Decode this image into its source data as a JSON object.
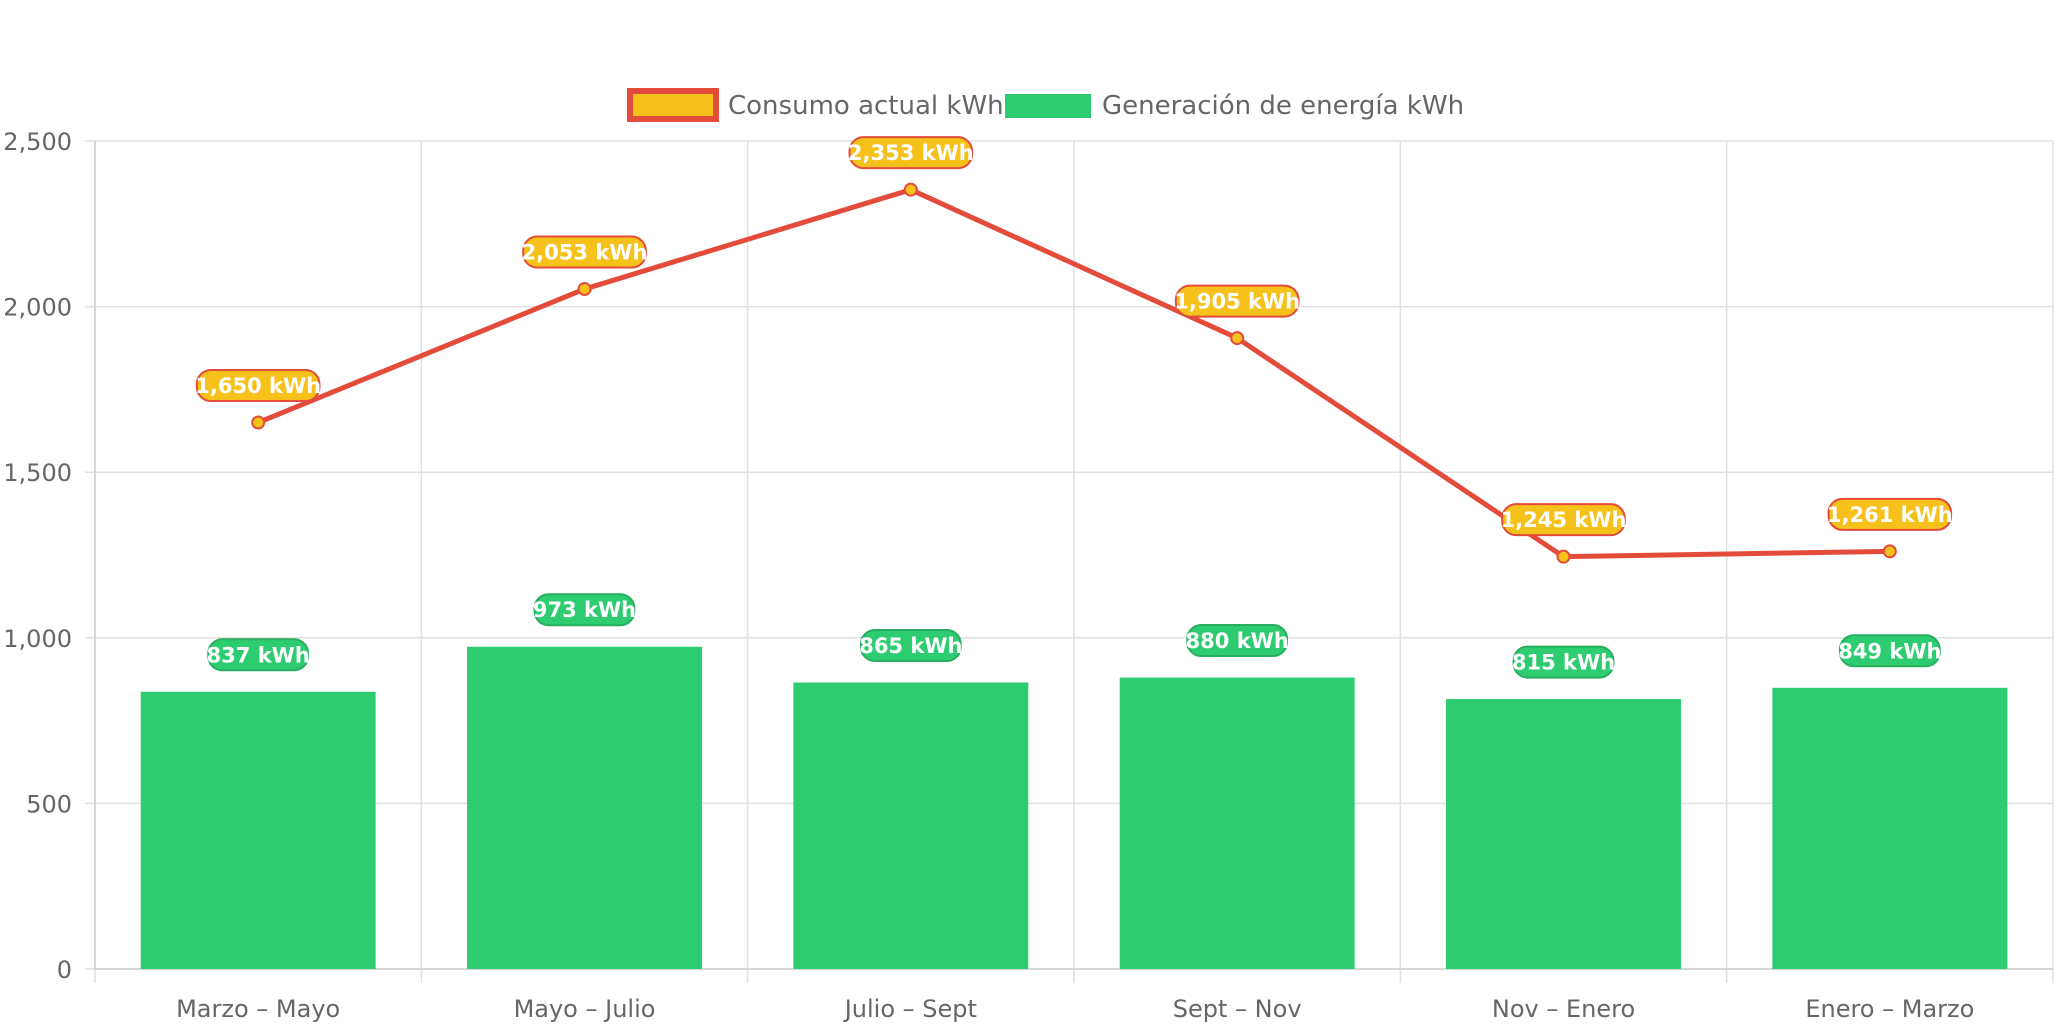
{
  "chart_data": {
    "type": "bar",
    "categories": [
      "Marzo – Mayo",
      "Mayo – Julio",
      "Julio – Sept",
      "Sept – Nov",
      "Nov – Enero",
      "Enero – Marzo"
    ],
    "series": [
      {
        "name": "Consumo actual kWh",
        "type": "line",
        "values": [
          1650,
          2053,
          2353,
          1905,
          1245,
          1261
        ],
        "labels": [
          "1,650 kWh",
          "2,053 kWh",
          "2,353 kWh",
          "1,905 kWh",
          "1,245 kWh",
          "1,261 kWh"
        ],
        "line_color": "#e34b3b",
        "fill_color": "#f5c11a"
      },
      {
        "name": "Generación de energía kWh",
        "type": "bar",
        "values": [
          837,
          973,
          865,
          880,
          815,
          849
        ],
        "labels": [
          "837 kWh",
          "973 kWh",
          "865 kWh",
          "880 kWh",
          "815 kWh",
          "849 kWh"
        ],
        "color": "#2ecc71",
        "border_color": "#27ae60"
      }
    ],
    "y_ticks": [
      "0",
      "500",
      "1,000",
      "1,500",
      "2,000",
      "2,500"
    ],
    "ylim": [
      0,
      2500
    ],
    "grid": true,
    "legend_position": "top-center"
  }
}
